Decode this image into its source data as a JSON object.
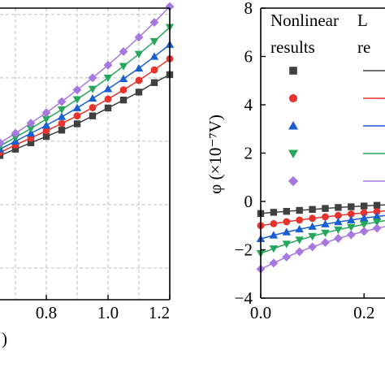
{
  "chart_data": [
    {
      "type": "scatter",
      "title": "",
      "xlabel": ")",
      "ylabel": "",
      "xlim": [
        0.65,
        1.2
      ],
      "ylim": [
        -5,
        4.2
      ],
      "x_ticks": [
        "0.8",
        "1.0",
        "1.2"
      ],
      "x_tick_values": [
        0.8,
        1.0,
        1.2
      ],
      "y_tick_values": [
        -4,
        -2,
        0,
        2,
        4
      ],
      "grid": true,
      "series": [
        {
          "color": "#404040",
          "marker": "square",
          "x": [
            0.65,
            0.7,
            0.75,
            0.8,
            0.85,
            0.9,
            0.95,
            1.0,
            1.05,
            1.1,
            1.15,
            1.2
          ],
          "values": [
            -0.45,
            -0.25,
            -0.05,
            0.15,
            0.35,
            0.55,
            0.8,
            1.05,
            1.3,
            1.55,
            1.85,
            2.1
          ]
        },
        {
          "color": "#e8322d",
          "marker": "circle",
          "x": [
            0.65,
            0.7,
            0.75,
            0.8,
            0.85,
            0.9,
            0.95,
            1.0,
            1.05,
            1.1,
            1.15,
            1.2
          ],
          "values": [
            -0.35,
            -0.12,
            0.1,
            0.33,
            0.56,
            0.8,
            1.06,
            1.33,
            1.62,
            1.92,
            2.25,
            2.6
          ]
        },
        {
          "color": "#1a5fd0",
          "marker": "triangle-up",
          "x": [
            0.65,
            0.7,
            0.75,
            0.8,
            0.85,
            0.9,
            0.95,
            1.0,
            1.05,
            1.1,
            1.15,
            1.2
          ],
          "values": [
            -0.25,
            0.0,
            0.25,
            0.5,
            0.77,
            1.05,
            1.35,
            1.65,
            1.97,
            2.3,
            2.67,
            3.05
          ]
        },
        {
          "color": "#26a65b",
          "marker": "triangle-down",
          "x": [
            0.65,
            0.7,
            0.75,
            0.8,
            0.85,
            0.9,
            0.95,
            1.0,
            1.05,
            1.1,
            1.15,
            1.2
          ],
          "values": [
            -0.15,
            0.12,
            0.4,
            0.7,
            1.0,
            1.32,
            1.65,
            2.0,
            2.37,
            2.75,
            3.15,
            3.6
          ]
        },
        {
          "color": "#a678e0",
          "marker": "diamond",
          "x": [
            0.65,
            0.7,
            0.75,
            0.8,
            0.85,
            0.9,
            0.95,
            1.0,
            1.05,
            1.1,
            1.15,
            1.2
          ],
          "values": [
            -0.05,
            0.25,
            0.57,
            0.9,
            1.25,
            1.62,
            2.0,
            2.4,
            2.83,
            3.28,
            3.75,
            4.25
          ]
        }
      ]
    },
    {
      "type": "scatter",
      "title": "",
      "xlabel": "",
      "ylabel": "φ (×10⁻⁷V)",
      "xlim": [
        0.0,
        0.25
      ],
      "ylim": [
        -4,
        8
      ],
      "x_ticks": [
        "0.0",
        "0.2"
      ],
      "x_tick_values": [
        0.0,
        0.2
      ],
      "y_ticks": [
        "−4",
        "−2",
        "0",
        "2",
        "4",
        "6",
        "8"
      ],
      "y_tick_values": [
        -4,
        -2,
        0,
        2,
        4,
        6,
        8
      ],
      "grid": false,
      "legend_position": "top",
      "legend": {
        "header_nonlinear": [
          "Nonlinear",
          "results"
        ],
        "header_linear": [
          "L",
          "re"
        ]
      },
      "series": [
        {
          "color": "#404040",
          "marker": "square",
          "x": [
            0.0,
            0.025,
            0.05,
            0.075,
            0.1,
            0.125,
            0.15,
            0.175,
            0.2,
            0.225,
            0.25
          ],
          "values": [
            -0.5,
            -0.45,
            -0.41,
            -0.37,
            -0.33,
            -0.29,
            -0.25,
            -0.22,
            -0.19,
            -0.16,
            -0.13
          ]
        },
        {
          "color": "#e8322d",
          "marker": "circle",
          "x": [
            0.0,
            0.025,
            0.05,
            0.075,
            0.1,
            0.125,
            0.15,
            0.175,
            0.2,
            0.225,
            0.25
          ],
          "values": [
            -1.0,
            -0.92,
            -0.84,
            -0.77,
            -0.7,
            -0.64,
            -0.58,
            -0.52,
            -0.47,
            -0.42,
            -0.37
          ]
        },
        {
          "color": "#1a5fd0",
          "marker": "triangle-up",
          "x": [
            0.0,
            0.025,
            0.05,
            0.075,
            0.1,
            0.125,
            0.15,
            0.175,
            0.2,
            0.225,
            0.25
          ],
          "values": [
            -1.55,
            -1.4,
            -1.27,
            -1.15,
            -1.04,
            -0.94,
            -0.85,
            -0.77,
            -0.69,
            -0.62,
            -0.56
          ]
        },
        {
          "color": "#26a65b",
          "marker": "triangle-down",
          "x": [
            0.0,
            0.025,
            0.05,
            0.075,
            0.1,
            0.125,
            0.15,
            0.175,
            0.2,
            0.225,
            0.25
          ],
          "values": [
            -2.15,
            -1.95,
            -1.76,
            -1.59,
            -1.44,
            -1.3,
            -1.17,
            -1.06,
            -0.95,
            -0.85,
            -0.76
          ]
        },
        {
          "color": "#a678e0",
          "marker": "diamond",
          "x": [
            0.0,
            0.025,
            0.05,
            0.075,
            0.1,
            0.125,
            0.15,
            0.175,
            0.2,
            0.225,
            0.25
          ],
          "values": [
            -2.8,
            -2.55,
            -2.3,
            -2.08,
            -1.88,
            -1.7,
            -1.53,
            -1.38,
            -1.24,
            -1.11,
            -1.0
          ]
        }
      ]
    }
  ]
}
